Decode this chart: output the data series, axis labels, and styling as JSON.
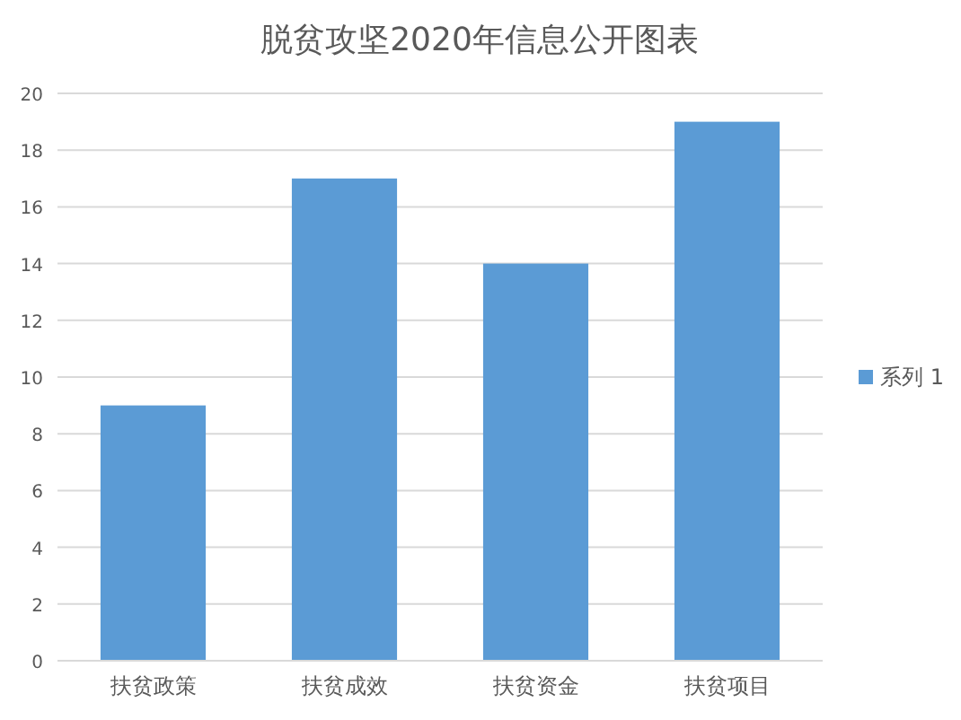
{
  "chart_data": {
    "type": "bar",
    "title": "脱贫攻坚2020年信息公开图表",
    "categories": [
      "扶贫政策",
      "扶贫成效",
      "扶贫资金",
      "扶贫项目"
    ],
    "series": [
      {
        "name": "系列 1",
        "color": "#5b9bd5",
        "values": [
          9,
          17,
          14,
          19
        ]
      }
    ],
    "ylim": [
      0,
      20
    ],
    "yticks": [
      0,
      2,
      4,
      6,
      8,
      10,
      12,
      14,
      16,
      18,
      20
    ],
    "grid": "y",
    "legend": "right"
  }
}
